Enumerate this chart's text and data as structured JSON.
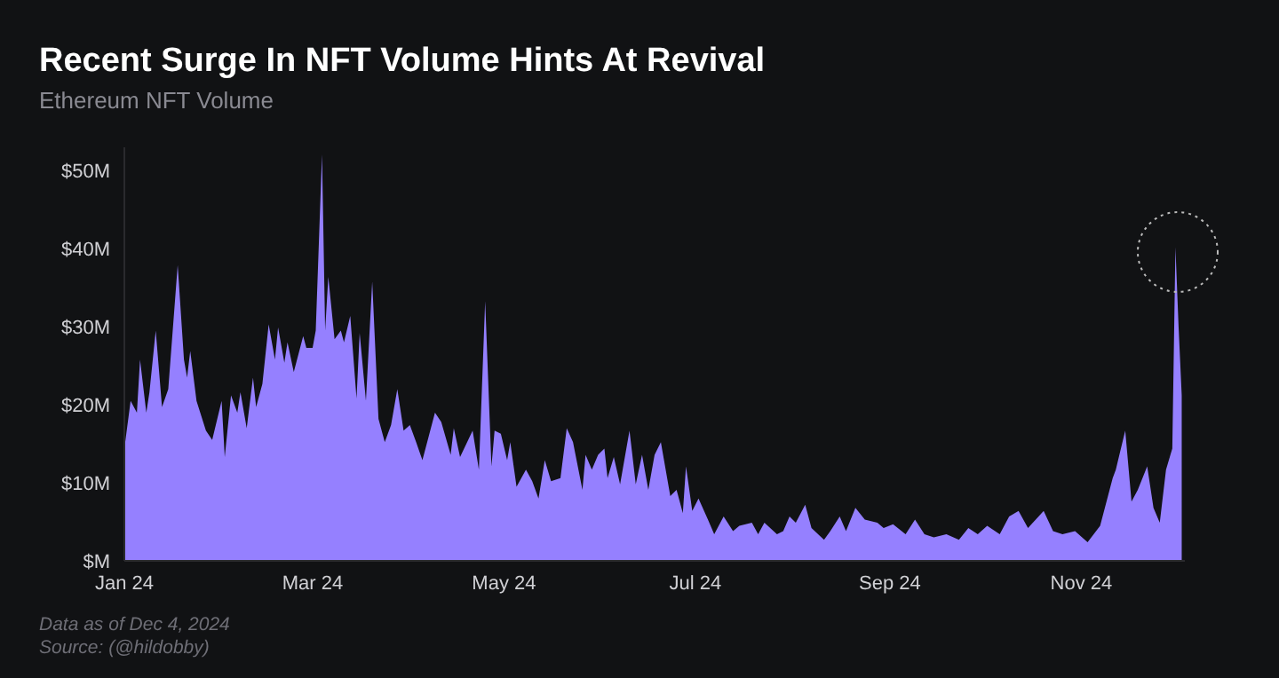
{
  "chart_data": {
    "type": "area",
    "title": "Recent Surge In NFT Volume Hints At Revival",
    "subtitle": "Ethereum NFT Volume",
    "annotations": [
      "Data as of Dec 4, 2024",
      "Source: (@hildobby)"
    ],
    "x": [
      "2024-01-01",
      "2024-01-03",
      "2024-01-05",
      "2024-01-06",
      "2024-01-08",
      "2024-01-09",
      "2024-01-11",
      "2024-01-13",
      "2024-01-15",
      "2024-01-18",
      "2024-01-20",
      "2024-01-21",
      "2024-01-22",
      "2024-01-24",
      "2024-01-27",
      "2024-01-29",
      "2024-02-01",
      "2024-02-02",
      "2024-02-04",
      "2024-02-06",
      "2024-02-07",
      "2024-02-09",
      "2024-02-11",
      "2024-02-12",
      "2024-02-14",
      "2024-02-16",
      "2024-02-18",
      "2024-02-19",
      "2024-02-21",
      "2024-02-22",
      "2024-02-24",
      "2024-02-27",
      "2024-02-28",
      "2024-03-01",
      "2024-03-02",
      "2024-03-04",
      "2024-03-05",
      "2024-03-06",
      "2024-03-08",
      "2024-03-10",
      "2024-03-11",
      "2024-03-13",
      "2024-03-15",
      "2024-03-16",
      "2024-03-18",
      "2024-03-20",
      "2024-03-22",
      "2024-03-24",
      "2024-03-26",
      "2024-03-28",
      "2024-03-30",
      "2024-04-01",
      "2024-04-03",
      "2024-04-05",
      "2024-04-09",
      "2024-04-11",
      "2024-04-14",
      "2024-04-15",
      "2024-04-17",
      "2024-04-21",
      "2024-04-23",
      "2024-04-25",
      "2024-04-27",
      "2024-04-28",
      "2024-04-30",
      "2024-05-02",
      "2024-05-03",
      "2024-05-05",
      "2024-05-08",
      "2024-05-10",
      "2024-05-12",
      "2024-05-14",
      "2024-05-16",
      "2024-05-19",
      "2024-05-21",
      "2024-05-23",
      "2024-05-26",
      "2024-05-27",
      "2024-05-29",
      "2024-05-31",
      "2024-06-02",
      "2024-06-03",
      "2024-06-05",
      "2024-06-07",
      "2024-06-10",
      "2024-06-12",
      "2024-06-14",
      "2024-06-16",
      "2024-06-18",
      "2024-06-20",
      "2024-06-23",
      "2024-06-25",
      "2024-06-27",
      "2024-06-28",
      "2024-06-30",
      "2024-07-02",
      "2024-07-05",
      "2024-07-07",
      "2024-07-10",
      "2024-07-13",
      "2024-07-15",
      "2024-07-19",
      "2024-07-21",
      "2024-07-23",
      "2024-07-27",
      "2024-07-29",
      "2024-07-31",
      "2024-08-02",
      "2024-08-05",
      "2024-08-07",
      "2024-08-11",
      "2024-08-13",
      "2024-08-16",
      "2024-08-18",
      "2024-08-21",
      "2024-08-24",
      "2024-08-28",
      "2024-08-30",
      "2024-09-02",
      "2024-09-06",
      "2024-09-09",
      "2024-09-12",
      "2024-09-15",
      "2024-09-19",
      "2024-09-23",
      "2024-09-26",
      "2024-09-29",
      "2024-10-02",
      "2024-10-06",
      "2024-10-09",
      "2024-10-12",
      "2024-10-15",
      "2024-10-20",
      "2024-10-23",
      "2024-10-26",
      "2024-10-30",
      "2024-11-03",
      "2024-11-07",
      "2024-11-11",
      "2024-11-12",
      "2024-11-15",
      "2024-11-17",
      "2024-11-19",
      "2024-11-22",
      "2024-11-24",
      "2024-11-26",
      "2024-11-28",
      "2024-11-30",
      "2024-12-01",
      "2024-12-02",
      "2024-12-03"
    ],
    "values": [
      14.4,
      20.5,
      19,
      25.8,
      19,
      21.6,
      29.5,
      19.7,
      22,
      37.9,
      25.8,
      23.5,
      26.9,
      20.5,
      16.7,
      15.5,
      20.5,
      13.3,
      21.2,
      19,
      21.6,
      17,
      23.5,
      19.7,
      22.7,
      30.3,
      25.8,
      29.9,
      25.4,
      28,
      24.2,
      28.8,
      27.3,
      27.3,
      29.5,
      52.1,
      29.5,
      36.4,
      28.4,
      29.5,
      28,
      31.4,
      20.8,
      29.2,
      20.5,
      35.8,
      18.2,
      15.2,
      17.4,
      22,
      16.7,
      17.4,
      15.2,
      12.9,
      19,
      17.8,
      13.6,
      17,
      13.3,
      16.7,
      11.7,
      33.3,
      12.1,
      16.7,
      16.3,
      12.9,
      15.2,
      9.5,
      11.7,
      10.2,
      8,
      12.9,
      10.2,
      10.6,
      17,
      15.2,
      9.1,
      13.6,
      11.7,
      13.6,
      14.4,
      10.6,
      13.3,
      9.8,
      16.7,
      9.8,
      13.6,
      9.1,
      13.6,
      15.2,
      8.3,
      9.1,
      6.1,
      12.1,
      6.4,
      8,
      5.3,
      3.4,
      5.7,
      3.8,
      4.5,
      4.9,
      3.4,
      4.9,
      3.4,
      3.8,
      5.7,
      4.9,
      7.2,
      4.2,
      2.7,
      3.8,
      5.7,
      3.8,
      6.8,
      5.3,
      4.9,
      4.2,
      4.7,
      3.4,
      5.3,
      3.4,
      3,
      3.4,
      2.7,
      4.2,
      3.4,
      4.5,
      3.4,
      5.7,
      6.4,
      4.2,
      6.4,
      3.8,
      3.4,
      3.8,
      2.4,
      4.5,
      10.6,
      11.7,
      16.7,
      7.6,
      9.1,
      12.1,
      6.8,
      4.9,
      11.7,
      14.4,
      40.2,
      30,
      21.2
    ],
    "color": "#9580ff",
    "xlim": [
      "2024-01-01",
      "2024-12-04"
    ],
    "xticks": [
      {
        "value": "2024-01-01",
        "label": "Jan 24"
      },
      {
        "value": "2024-03-01",
        "label": "Mar 24"
      },
      {
        "value": "2024-05-01",
        "label": "May 24"
      },
      {
        "value": "2024-07-01",
        "label": "Jul 24"
      },
      {
        "value": "2024-09-01",
        "label": "Sep 24"
      },
      {
        "value": "2024-11-01",
        "label": "Nov 24"
      }
    ],
    "ylim": [
      0,
      53
    ],
    "yticks": [
      {
        "value": 0,
        "label": "$M"
      },
      {
        "value": 10,
        "label": "$10M"
      },
      {
        "value": 20,
        "label": "$20M"
      },
      {
        "value": 30,
        "label": "$30M"
      },
      {
        "value": 40,
        "label": "$40M"
      },
      {
        "value": 50,
        "label": "$50M"
      }
    ]
  }
}
